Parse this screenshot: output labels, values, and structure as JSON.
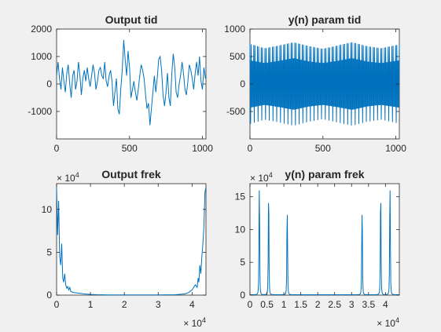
{
  "chart_data": [
    {
      "type": "line",
      "title": "Output tid",
      "xlabel": "",
      "ylabel": "",
      "xlim": [
        0,
        1024
      ],
      "ylim": [
        -2000,
        2000
      ],
      "xticks": [
        0,
        500,
        1000
      ],
      "yticks": [
        -1000,
        0,
        1000,
        2000
      ],
      "xtick_labels": [
        "0",
        "500",
        "1000"
      ],
      "ytick_labels": [
        "-1000",
        "0",
        "1000",
        "2000"
      ],
      "exponent_label": "",
      "grid": false,
      "series": [
        {
          "x": [
            0,
            10,
            20,
            30,
            40,
            50,
            60,
            70,
            80,
            90,
            100,
            110,
            120,
            130,
            140,
            150,
            160,
            170,
            180,
            190,
            200,
            210,
            220,
            230,
            240,
            250,
            260,
            270,
            280,
            290,
            300,
            310,
            320,
            330,
            340,
            350,
            360,
            370,
            380,
            390,
            400,
            410,
            420,
            430,
            440,
            450,
            460,
            470,
            480,
            490,
            500,
            510,
            520,
            530,
            540,
            550,
            560,
            570,
            580,
            590,
            600,
            610,
            620,
            630,
            640,
            650,
            660,
            670,
            680,
            690,
            700,
            710,
            720,
            730,
            740,
            750,
            760,
            770,
            780,
            790,
            800,
            810,
            820,
            830,
            840,
            850,
            860,
            870,
            880,
            890,
            900,
            910,
            920,
            930,
            940,
            950,
            960,
            970,
            980,
            990,
            1000,
            1010,
            1020
          ],
          "y": [
            300,
            800,
            200,
            -200,
            600,
            100,
            -300,
            400,
            700,
            0,
            -500,
            300,
            500,
            -200,
            100,
            800,
            300,
            -400,
            200,
            500,
            100,
            600,
            200,
            -100,
            300,
            700,
            400,
            -200,
            100,
            500,
            600,
            300,
            200,
            800,
            100,
            -100,
            300,
            500,
            100,
            -800,
            -300,
            200,
            -900,
            -1100,
            -200,
            500,
            1600,
            900,
            300,
            1200,
            600,
            -500,
            -200,
            100,
            -300,
            -600,
            -200,
            300,
            700,
            500,
            200,
            -400,
            -900,
            -700,
            -1500,
            -900,
            -300,
            300,
            -300,
            200,
            900,
            1000,
            500,
            -400,
            -800,
            -300,
            400,
            -500,
            -800,
            400,
            1100,
            600,
            -300,
            -500,
            0,
            300,
            800,
            400,
            -200,
            -400,
            100,
            700,
            500,
            200,
            -200,
            400,
            800,
            300,
            1000,
            100,
            -200,
            600,
            200
          ]
        }
      ]
    },
    {
      "type": "line",
      "title": "y(n) param tid",
      "xlabel": "",
      "ylabel": "",
      "xlim": [
        0,
        1024
      ],
      "ylim": [
        -1000,
        1000
      ],
      "xticks": [
        0,
        500,
        1000
      ],
      "yticks": [
        -500,
        0,
        500,
        1000
      ],
      "xtick_labels": [
        "0",
        "500",
        "1000"
      ],
      "ytick_labels": [
        "-500",
        "0",
        "500",
        "1000"
      ],
      "exponent_label": "",
      "grid": false,
      "series": [
        {
          "note_envelope_x": [
            0,
            100,
            200,
            300,
            400,
            500,
            600,
            700,
            800,
            900,
            1024
          ],
          "upper_envelope": [
            730,
            650,
            700,
            760,
            690,
            640,
            700,
            760,
            690,
            650,
            720
          ],
          "lower_envelope": [
            -730,
            -650,
            -700,
            -760,
            -690,
            -640,
            -700,
            -760,
            -690,
            -650,
            -720
          ],
          "inner_upper": [
            430,
            380,
            420,
            470,
            410,
            380,
            420,
            470,
            410,
            380,
            430
          ],
          "inner_lower": [
            -430,
            -380,
            -420,
            -470,
            -410,
            -380,
            -420,
            -470,
            -410,
            -380,
            -430
          ],
          "cycles": 120
        }
      ]
    },
    {
      "type": "line",
      "title": "Output frek",
      "xlabel": "",
      "ylabel": "",
      "xlim": [
        0,
        44100
      ],
      "ylim": [
        0,
        130000
      ],
      "xticks": [
        0,
        10000,
        20000,
        30000,
        40000
      ],
      "yticks": [
        0,
        50000,
        100000
      ],
      "xtick_labels": [
        "0",
        "1",
        "2",
        "3",
        "4"
      ],
      "ytick_labels": [
        "0",
        "5",
        "10"
      ],
      "x_exponent_label": "× 10^4",
      "y_exponent_label": "× 10^4",
      "grid": false,
      "series": [
        {
          "x": [
            0,
            300,
            600,
            900,
            1200,
            1500,
            1800,
            2100,
            2400,
            2700,
            3000,
            3300,
            3600,
            3900,
            4200,
            5000,
            6000,
            7000,
            8000,
            9000,
            10000,
            12000,
            15000,
            20000,
            25000,
            30000,
            35000,
            38000,
            39000,
            40000,
            41000,
            41500,
            41800,
            42000,
            42300,
            42600,
            42900,
            43200,
            43500,
            43800,
            44100
          ],
          "y": [
            126000,
            70000,
            110000,
            45000,
            35000,
            60000,
            20000,
            15000,
            25000,
            12000,
            8000,
            10000,
            6000,
            9000,
            4000,
            3000,
            2500,
            2000,
            1500,
            1200,
            800,
            500,
            300,
            200,
            200,
            300,
            500,
            1500,
            3000,
            6000,
            12000,
            9000,
            20000,
            15000,
            35000,
            25000,
            45000,
            60000,
            80000,
            120000,
            126000
          ]
        }
      ]
    },
    {
      "type": "line",
      "title": "y(n) param frek",
      "xlabel": "",
      "ylabel": "",
      "xlim": [
        0,
        44100
      ],
      "ylim": [
        0,
        170000
      ],
      "xticks": [
        0,
        5000,
        10000,
        15000,
        20000,
        25000,
        30000,
        35000,
        40000
      ],
      "yticks": [
        0,
        50000,
        100000,
        150000
      ],
      "xtick_labels": [
        "0",
        "0.5",
        "1",
        "1.5",
        "2",
        "2.5",
        "3",
        "3.5",
        "4"
      ],
      "ytick_labels": [
        "0",
        "5",
        "10",
        "15"
      ],
      "x_exponent_label": "× 10^4",
      "y_exponent_label": "× 10^4",
      "grid": false,
      "series": [
        {
          "peaks_x": [
            2750,
            5500,
            11000,
            33100,
            38600,
            41350
          ],
          "peaks_y": [
            160000,
            145000,
            123000,
            123000,
            145000,
            160000
          ]
        }
      ]
    }
  ]
}
